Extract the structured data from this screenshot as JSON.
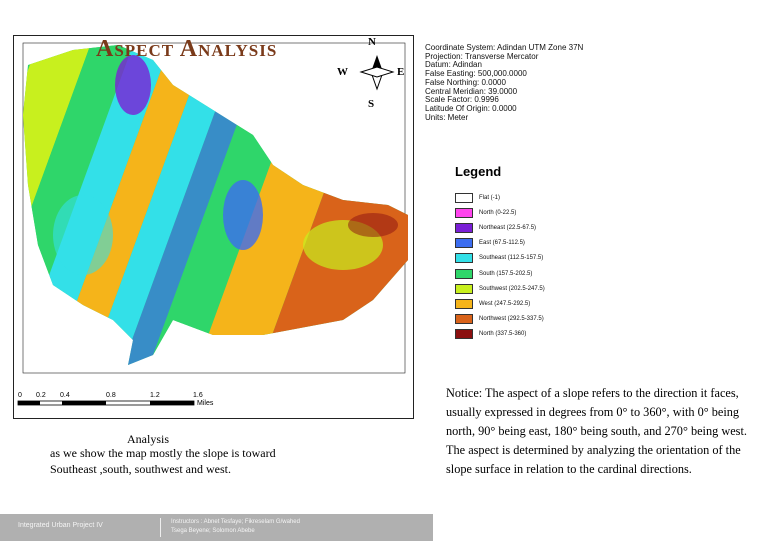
{
  "map": {
    "title": "Aspect Analysis",
    "compass": {
      "n": "N",
      "e": "E",
      "s": "S",
      "w": "W"
    },
    "scale_labels": [
      "0",
      "0.2",
      "0.4",
      "0.8",
      "1.2",
      "1.6"
    ],
    "scale_unit": "Miles"
  },
  "coordinate_system": [
    "Coordinate System: Adindan UTM Zone 37N",
    "Projection: Transverse Mercator",
    "Datum: Adindan",
    "False Easting: 500,000.0000",
    "False Northing: 0.0000",
    "Central Meridian: 39.0000",
    "Scale Factor: 0.9996",
    "Latitude Of Origin: 0.0000",
    "Units: Meter"
  ],
  "legend": {
    "title": "Legend",
    "items": [
      {
        "label": "Flat (-1)",
        "color": "#ffffff"
      },
      {
        "label": "North (0-22.5)",
        "color": "#ff44ee"
      },
      {
        "label": "Northeast (22.5-67.5)",
        "color": "#7a1fd6"
      },
      {
        "label": "East (67.5-112.5)",
        "color": "#3c6df0"
      },
      {
        "label": "Southeast (112.5-157.5)",
        "color": "#33e0e8"
      },
      {
        "label": "South (157.5-202.5)",
        "color": "#2fd66a"
      },
      {
        "label": "Southwest (202.5-247.5)",
        "color": "#c8f01e"
      },
      {
        "label": "West (247.5-292.5)",
        "color": "#f5b41a"
      },
      {
        "label": "Northwest (292.5-337.5)",
        "color": "#d9631a"
      },
      {
        "label": "North (337.5-360)",
        "color": "#8b0f0f"
      }
    ]
  },
  "analysis": {
    "heading": "Analysis",
    "text": "as we show the map mostly the slope is toward Southeast ,south, southwest and west."
  },
  "notice": "Notice: The aspect of a slope refers to the direction it faces, usually expressed in degrees from 0° to 360°, with 0° being north, 90° being east, 180° being south, and 270° being west. The aspect is determined by analyzing the orientation of the slope surface in relation to the cardinal directions.",
  "footer": {
    "project": "Integrated Urban Project IV",
    "instructors": [
      "Instructors : Abnet Tesfaye; Fikreselam G/wahed",
      "Tsega Beyene; Solomon Abebe"
    ]
  }
}
